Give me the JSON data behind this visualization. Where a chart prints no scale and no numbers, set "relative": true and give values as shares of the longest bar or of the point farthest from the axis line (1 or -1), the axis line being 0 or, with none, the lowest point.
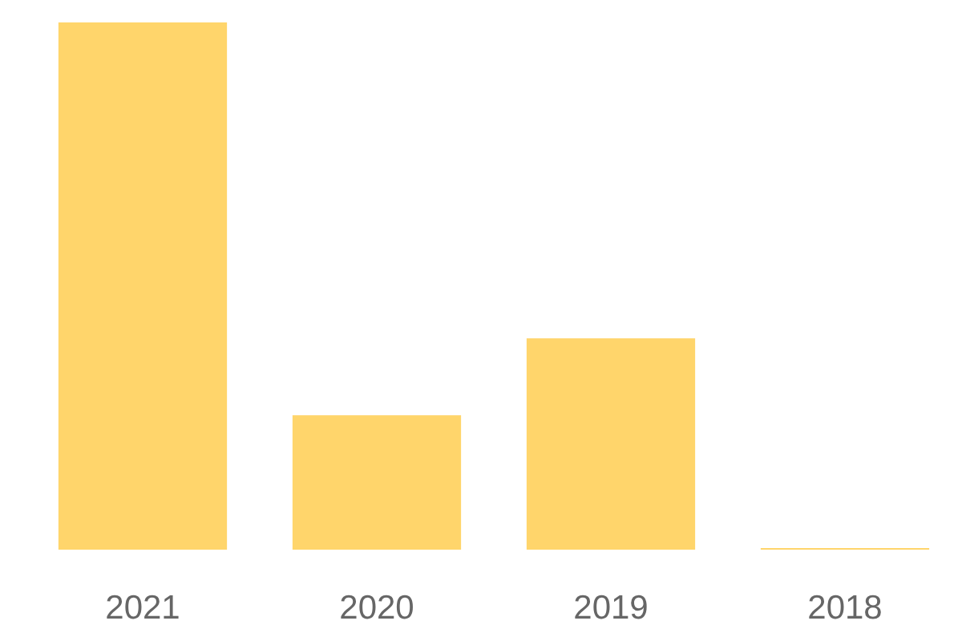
{
  "chart_data": {
    "type": "bar",
    "relative": true,
    "categories": [
      "2021",
      "2020",
      "2019",
      "2018"
    ],
    "values": [
      1,
      0.255,
      0.401,
      0.003
    ],
    "color": "#ffd56b"
  }
}
